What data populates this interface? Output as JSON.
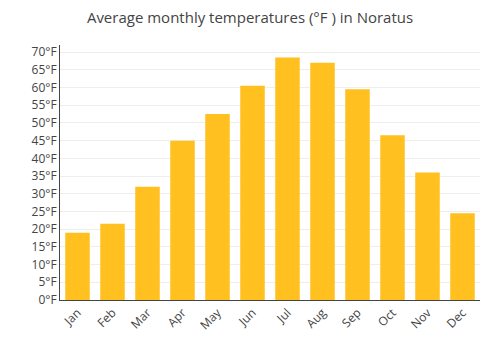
{
  "chart_data": {
    "type": "bar",
    "title": "Average monthly temperatures (°F ) in Noratus",
    "categories": [
      "Jan",
      "Feb",
      "Mar",
      "Apr",
      "May",
      "Jun",
      "Jul",
      "Aug",
      "Sep",
      "Oct",
      "Nov",
      "Dec"
    ],
    "values": [
      19,
      21.5,
      32,
      45,
      52.5,
      60.5,
      68.5,
      67,
      59.5,
      46.5,
      36,
      24.5
    ],
    "color": "#FFC020",
    "ylim": [
      0,
      72
    ],
    "yticks": [
      {
        "value": 0,
        "label": "0°F"
      },
      {
        "value": 5,
        "label": "5°F"
      },
      {
        "value": 10,
        "label": "10°F"
      },
      {
        "value": 15,
        "label": "15°F"
      },
      {
        "value": 20,
        "label": "20°F"
      },
      {
        "value": 25,
        "label": "25°F"
      },
      {
        "value": 30,
        "label": "30°F"
      },
      {
        "value": 35,
        "label": "35°F"
      },
      {
        "value": 40,
        "label": "40°F"
      },
      {
        "value": 45,
        "label": "45°F"
      },
      {
        "value": 50,
        "label": "50°F"
      },
      {
        "value": 55,
        "label": "55°F"
      },
      {
        "value": 60,
        "label": "60°F"
      },
      {
        "value": 65,
        "label": "65°F"
      },
      {
        "value": 70,
        "label": "70°F"
      }
    ],
    "grid": true
  }
}
